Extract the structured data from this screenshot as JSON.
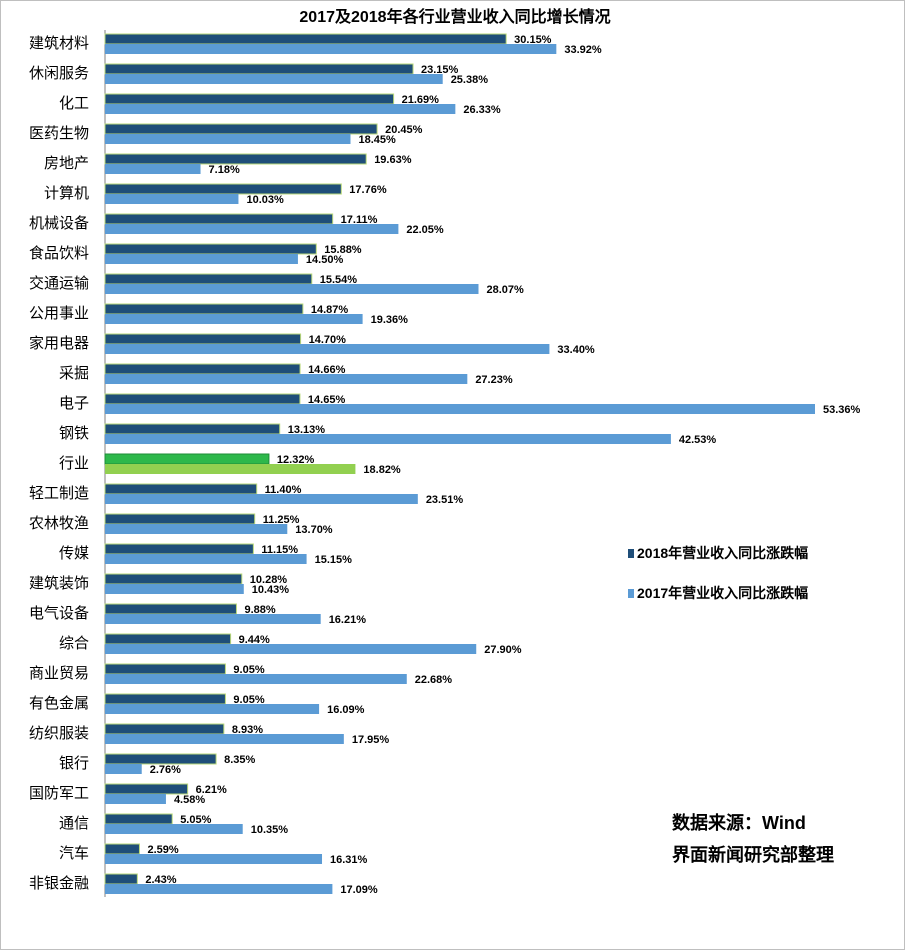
{
  "chart_data": {
    "type": "bar",
    "orientation": "horizontal",
    "title": "2017及2018年各行业营业收入同比增长情况",
    "categories": [
      "建筑材料",
      "休闲服务",
      "化工",
      "医药生物",
      "房地产",
      "计算机",
      "机械设备",
      "食品饮料",
      "交通运输",
      "公用事业",
      "家用电器",
      "采掘",
      "电子",
      "钢铁",
      "行业",
      "轻工制造",
      "农林牧渔",
      "传媒",
      "建筑装饰",
      "电气设备",
      "综合",
      "商业贸易",
      "有色金属",
      "纺织服装",
      "银行",
      "国防军工",
      "通信",
      "汽车",
      "非银金融"
    ],
    "highlight_category": "行业",
    "series": [
      {
        "name": "2018年营业收入同比涨跌幅",
        "color": "#1f4e79",
        "highlight_color": "#2db84b",
        "values": [
          30.15,
          23.15,
          21.69,
          20.45,
          19.63,
          17.76,
          17.11,
          15.88,
          15.54,
          14.87,
          14.7,
          14.66,
          14.65,
          13.13,
          12.32,
          11.4,
          11.25,
          11.15,
          10.28,
          9.88,
          9.44,
          9.05,
          9.05,
          8.93,
          8.35,
          6.21,
          5.05,
          2.59,
          2.43
        ],
        "labels": [
          "30.15%",
          "23.15%",
          "21.69%",
          "20.45%",
          "19.63%",
          "17.76%",
          "17.11%",
          "15.88%",
          "15.54%",
          "14.87%",
          "14.70%",
          "14.66%",
          "14.65%",
          "13.13%",
          "12.32%",
          "11.40%",
          "11.25%",
          "11.15%",
          "10.28%",
          "9.88%",
          "9.44%",
          "9.05%",
          "9.05%",
          "8.93%",
          "8.35%",
          "6.21%",
          "5.05%",
          "2.59%",
          "2.43%"
        ]
      },
      {
        "name": "2017年营业收入同比涨跌幅",
        "color": "#5b9bd5",
        "highlight_color": "#92d050",
        "values": [
          33.92,
          25.38,
          26.33,
          18.45,
          7.18,
          10.03,
          22.05,
          14.5,
          28.07,
          19.36,
          33.4,
          27.23,
          53.36,
          42.53,
          18.82,
          23.51,
          13.7,
          15.15,
          10.43,
          16.21,
          27.9,
          22.68,
          16.09,
          17.95,
          2.76,
          4.58,
          10.35,
          16.31,
          17.09
        ],
        "labels": [
          "33.92%",
          "25.38%",
          "26.33%",
          "18.45%",
          "7.18%",
          "10.03%",
          "22.05%",
          "14.50%",
          "28.07%",
          "19.36%",
          "33.40%",
          "27.23%",
          "53.36%",
          "42.53%",
          "18.82%",
          "23.51%",
          "13.70%",
          "15.15%",
          "10.43%",
          "16.21%",
          "27.90%",
          "22.68%",
          "16.09%",
          "17.95%",
          "2.76%",
          "4.58%",
          "10.35%",
          "16.31%",
          "17.09%"
        ]
      }
    ],
    "xlim": [
      0,
      53.36
    ],
    "grid": false,
    "legend_position": "right"
  },
  "source_note": [
    "数据来源：Wind",
    "界面新闻研究部整理"
  ]
}
